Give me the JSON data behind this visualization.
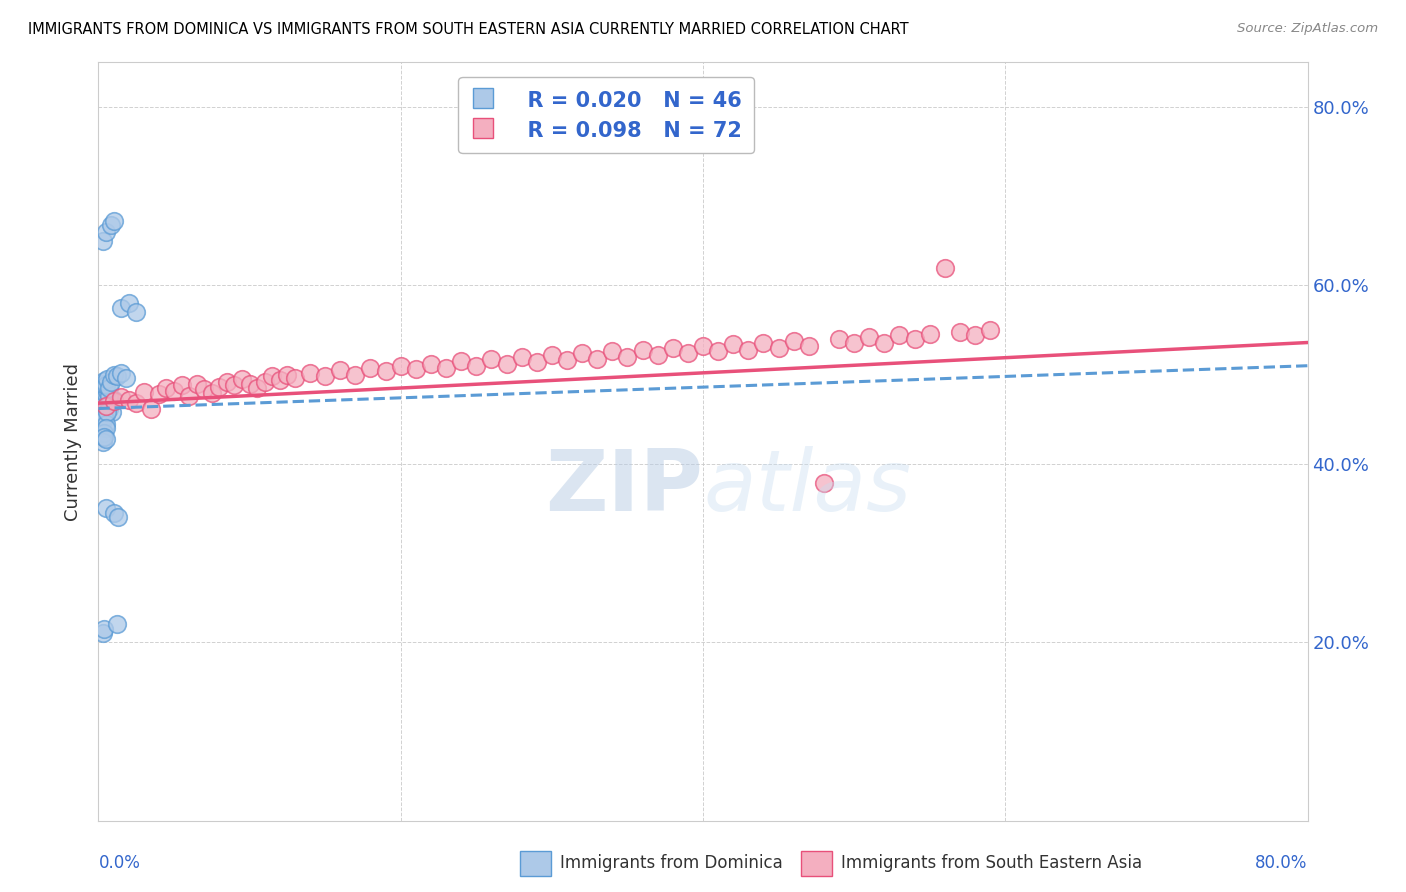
{
  "title": "IMMIGRANTS FROM DOMINICA VS IMMIGRANTS FROM SOUTH EASTERN ASIA CURRENTLY MARRIED CORRELATION CHART",
  "source": "Source: ZipAtlas.com",
  "ylabel": "Currently Married",
  "xlabel_blue": "Immigrants from Dominica",
  "xlabel_pink": "Immigrants from South Eastern Asia",
  "legend_blue_R": "0.020",
  "legend_blue_N": "46",
  "legend_pink_R": "0.098",
  "legend_pink_N": "72",
  "xlim": [
    0.0,
    0.8
  ],
  "ylim": [
    0.0,
    0.85
  ],
  "yticks": [
    0.2,
    0.4,
    0.6,
    0.8
  ],
  "xticks": [
    0.0,
    0.2,
    0.4,
    0.6,
    0.8
  ],
  "color_blue": "#adc9e8",
  "color_pink": "#f4afc0",
  "trendline_blue": "#5b9bd5",
  "trendline_pink": "#e8507a",
  "watermark_zip": "ZIP",
  "watermark_atlas": "atlas",
  "blue_x": [
    0.003,
    0.004,
    0.005,
    0.006,
    0.007,
    0.008,
    0.009,
    0.01,
    0.003,
    0.004,
    0.005,
    0.006,
    0.007,
    0.003,
    0.004,
    0.005,
    0.006,
    0.003,
    0.004,
    0.005,
    0.003,
    0.004,
    0.005,
    0.006,
    0.007,
    0.008,
    0.01,
    0.012,
    0.015,
    0.018,
    0.003,
    0.004,
    0.005,
    0.003,
    0.005,
    0.008,
    0.01,
    0.015,
    0.02,
    0.025,
    0.005,
    0.01,
    0.013,
    0.003,
    0.004,
    0.012
  ],
  "blue_y": [
    0.46,
    0.465,
    0.455,
    0.47,
    0.462,
    0.468,
    0.458,
    0.472,
    0.475,
    0.48,
    0.478,
    0.482,
    0.476,
    0.448,
    0.452,
    0.445,
    0.458,
    0.43,
    0.435,
    0.44,
    0.49,
    0.493,
    0.488,
    0.495,
    0.485,
    0.492,
    0.5,
    0.498,
    0.502,
    0.496,
    0.425,
    0.43,
    0.428,
    0.65,
    0.66,
    0.668,
    0.672,
    0.575,
    0.58,
    0.57,
    0.35,
    0.345,
    0.34,
    0.21,
    0.215,
    0.22
  ],
  "pink_x": [
    0.005,
    0.01,
    0.015,
    0.02,
    0.025,
    0.03,
    0.035,
    0.04,
    0.045,
    0.05,
    0.055,
    0.06,
    0.065,
    0.07,
    0.075,
    0.08,
    0.085,
    0.09,
    0.095,
    0.1,
    0.105,
    0.11,
    0.115,
    0.12,
    0.125,
    0.13,
    0.14,
    0.15,
    0.16,
    0.17,
    0.18,
    0.19,
    0.2,
    0.21,
    0.22,
    0.23,
    0.24,
    0.25,
    0.26,
    0.27,
    0.28,
    0.29,
    0.3,
    0.31,
    0.32,
    0.33,
    0.34,
    0.35,
    0.36,
    0.37,
    0.38,
    0.39,
    0.4,
    0.41,
    0.42,
    0.43,
    0.44,
    0.45,
    0.46,
    0.47,
    0.48,
    0.49,
    0.5,
    0.51,
    0.52,
    0.53,
    0.54,
    0.55,
    0.56,
    0.57,
    0.58,
    0.59
  ],
  "pink_y": [
    0.465,
    0.47,
    0.475,
    0.472,
    0.468,
    0.48,
    0.462,
    0.478,
    0.485,
    0.482,
    0.488,
    0.476,
    0.49,
    0.484,
    0.479,
    0.486,
    0.492,
    0.488,
    0.495,
    0.49,
    0.485,
    0.492,
    0.498,
    0.494,
    0.5,
    0.496,
    0.502,
    0.498,
    0.505,
    0.5,
    0.508,
    0.504,
    0.51,
    0.506,
    0.512,
    0.508,
    0.515,
    0.51,
    0.518,
    0.512,
    0.52,
    0.514,
    0.522,
    0.516,
    0.524,
    0.518,
    0.526,
    0.52,
    0.528,
    0.522,
    0.53,
    0.524,
    0.532,
    0.526,
    0.534,
    0.528,
    0.536,
    0.53,
    0.538,
    0.532,
    0.378,
    0.54,
    0.535,
    0.542,
    0.536,
    0.544,
    0.54,
    0.546,
    0.62,
    0.548,
    0.544,
    0.55
  ]
}
